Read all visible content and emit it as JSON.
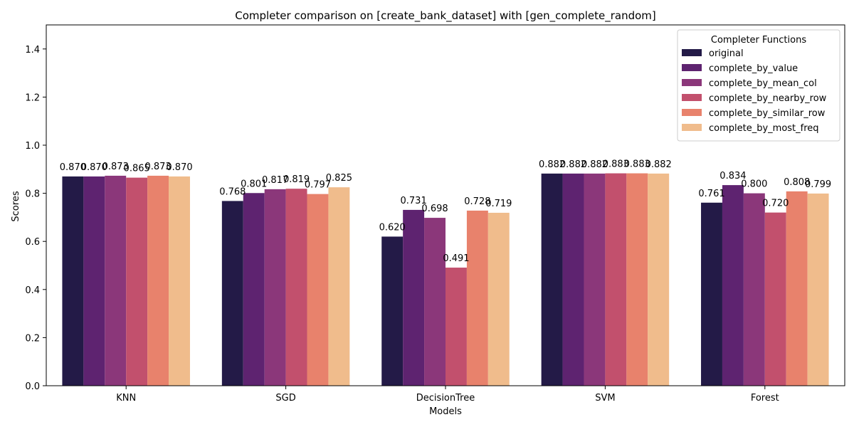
{
  "chart_data": {
    "type": "bar",
    "title": "Completer comparison on [create_bank_dataset] with [gen_complete_random]",
    "xlabel": "Models",
    "ylabel": "Scores",
    "ylim": [
      0,
      1.5
    ],
    "yticks": [
      "0.0",
      "0.2",
      "0.4",
      "0.6",
      "0.8",
      "1.0",
      "1.2",
      "1.4"
    ],
    "grid": false,
    "legend_title": "Completer Functions",
    "legend_position": "top-right",
    "categories": [
      "KNN",
      "SGD",
      "DecisionTree",
      "SVM",
      "Forest"
    ],
    "series": [
      {
        "name": "original",
        "color": "#231a47",
        "values": [
          0.87,
          0.768,
          0.62,
          0.882,
          0.761
        ]
      },
      {
        "name": "complete_by_value",
        "color": "#5e2370",
        "values": [
          0.87,
          0.801,
          0.731,
          0.882,
          0.834
        ]
      },
      {
        "name": "complete_by_mean_col",
        "color": "#8b377a",
        "values": [
          0.873,
          0.817,
          0.698,
          0.882,
          0.8
        ]
      },
      {
        "name": "complete_by_nearby_row",
        "color": "#c2506d",
        "values": [
          0.865,
          0.819,
          0.491,
          0.883,
          0.72
        ]
      },
      {
        "name": "complete_by_similar_row",
        "color": "#e8826c",
        "values": [
          0.873,
          0.797,
          0.728,
          0.883,
          0.808
        ]
      },
      {
        "name": "complete_by_most_freq",
        "color": "#f0bc8c",
        "values": [
          0.87,
          0.825,
          0.719,
          0.882,
          0.799
        ]
      }
    ]
  }
}
